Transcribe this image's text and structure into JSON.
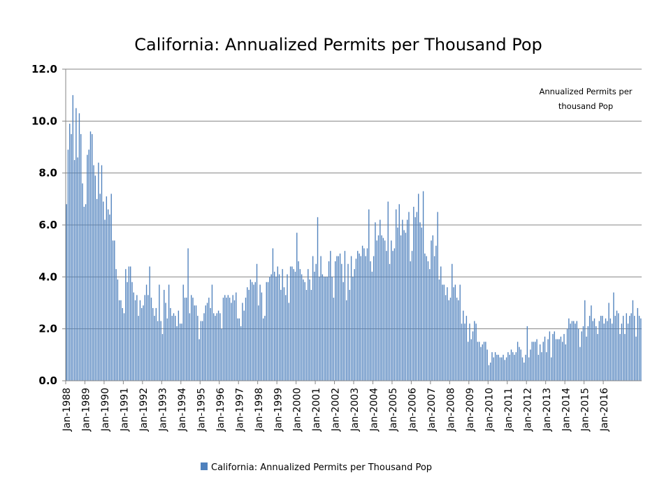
{
  "chart_data": {
    "type": "bar",
    "title": "California: Annualized Permits per Thousand Pop",
    "xlabel": "",
    "ylabel": "",
    "ylim": [
      0,
      12
    ],
    "yticks": [
      "0.0",
      "2.0",
      "4.0",
      "6.0",
      "8.0",
      "10.0",
      "12.0"
    ],
    "grid": true,
    "legend_position": "bottom",
    "annotation": [
      "Annualized Permits per",
      "thousand Pop"
    ],
    "bar_color": "#4f81bd",
    "start": "Jan-1988",
    "x_ticks": [
      "Jan-1988",
      "Jan-1989",
      "Jan-1990",
      "Jan-1991",
      "Jan-1992",
      "Jan-1993",
      "Jan-1994",
      "Jan-1995",
      "Jan-1996",
      "Jan-1997",
      "Jan-1998",
      "Jan-1999",
      "Jan-2000",
      "Jan-2001",
      "Jan-2002",
      "Jan-2003",
      "Jan-2004",
      "Jan-2005",
      "Jan-2006",
      "Jan-2007",
      "Jan-2008",
      "Jan-2009",
      "Jan-2010",
      "Jan-2011",
      "Jan-2012",
      "Jan-2013",
      "Jan-2014",
      "Jan-2015",
      "Jan-2016"
    ],
    "series": [
      {
        "name": "California: Annualized Permits per Thousand Pop",
        "values": [
          6.8,
          8.9,
          9.9,
          9.5,
          11.0,
          8.5,
          10.5,
          8.6,
          10.3,
          9.5,
          7.6,
          6.7,
          6.8,
          8.7,
          8.9,
          9.6,
          9.5,
          8.3,
          7.9,
          7.0,
          8.4,
          7.2,
          8.3,
          6.9,
          6.2,
          7.1,
          6.6,
          6.4,
          7.2,
          5.4,
          5.4,
          4.3,
          3.9,
          3.1,
          3.1,
          2.8,
          2.6,
          4.3,
          3.8,
          4.4,
          4.4,
          3.8,
          3.4,
          3.1,
          3.3,
          2.5,
          3.1,
          2.8,
          2.9,
          3.3,
          3.7,
          3.3,
          4.4,
          3.2,
          2.8,
          2.5,
          2.8,
          2.3,
          3.7,
          2.3,
          1.8,
          3.5,
          3.0,
          2.4,
          3.7,
          2.8,
          2.5,
          2.6,
          2.5,
          2.1,
          2.7,
          2.2,
          2.2,
          3.7,
          3.2,
          3.2,
          5.1,
          2.6,
          3.3,
          3.2,
          2.9,
          2.9,
          2.5,
          1.6,
          2.3,
          2.3,
          2.6,
          2.9,
          3.0,
          3.2,
          2.8,
          3.7,
          2.6,
          2.5,
          2.6,
          2.7,
          2.6,
          2.0,
          3.2,
          3.3,
          3.2,
          3.3,
          3.2,
          3.0,
          3.3,
          3.1,
          3.4,
          2.4,
          2.4,
          2.1,
          3.0,
          2.7,
          3.2,
          3.6,
          3.5,
          3.9,
          3.8,
          3.7,
          3.8,
          4.5,
          2.9,
          3.7,
          3.4,
          2.4,
          2.5,
          3.8,
          3.8,
          4.0,
          4.1,
          5.1,
          4.2,
          4.0,
          4.4,
          4.1,
          3.5,
          4.3,
          3.6,
          3.3,
          4.1,
          3.0,
          4.4,
          4.4,
          4.3,
          4.2,
          5.7,
          4.6,
          4.3,
          4.1,
          3.9,
          3.8,
          3.5,
          4.3,
          3.9,
          3.5,
          4.8,
          4.2,
          4.5,
          6.3,
          4.0,
          4.8,
          4.1,
          4.0,
          4.0,
          4.0,
          4.6,
          5.0,
          4.0,
          3.2,
          4.6,
          4.8,
          4.8,
          4.9,
          4.5,
          3.8,
          5.0,
          3.1,
          4.5,
          3.5,
          4.8,
          4.0,
          4.3,
          4.7,
          5.0,
          4.9,
          4.8,
          5.2,
          5.1,
          4.8,
          5.1,
          6.6,
          4.6,
          4.2,
          4.8,
          6.1,
          5.4,
          5.6,
          6.2,
          5.6,
          5.5,
          5.4,
          5.0,
          6.9,
          4.5,
          5.4,
          5.0,
          5.1,
          6.6,
          5.9,
          6.8,
          5.6,
          6.2,
          5.8,
          5.7,
          6.2,
          6.5,
          4.6,
          5.0,
          6.7,
          6.3,
          6.5,
          7.2,
          6.1,
          5.9,
          7.3,
          4.9,
          4.8,
          4.6,
          4.3,
          5.4,
          5.6,
          4.8,
          5.2,
          6.5,
          3.9,
          4.4,
          3.7,
          3.7,
          3.3,
          3.6,
          3.1,
          3.2,
          4.5,
          3.6,
          3.7,
          3.2,
          3.1,
          3.7,
          2.2,
          2.7,
          2.2,
          2.5,
          1.5,
          2.2,
          1.6,
          1.9,
          2.3,
          2.2,
          1.5,
          1.5,
          1.3,
          1.4,
          1.5,
          1.5,
          1.2,
          0.6,
          0.7,
          1.1,
          0.9,
          1.1,
          1.0,
          1.0,
          0.9,
          0.9,
          1.0,
          0.8,
          0.9,
          1.1,
          1.0,
          1.2,
          1.1,
          1.0,
          1.1,
          1.5,
          1.3,
          1.2,
          0.9,
          0.7,
          1.0,
          2.1,
          0.9,
          1.2,
          1.5,
          1.5,
          1.5,
          1.6,
          1.0,
          1.4,
          1.1,
          1.5,
          1.7,
          1.1,
          1.6,
          1.9,
          0.9,
          1.8,
          1.9,
          1.6,
          1.6,
          1.6,
          1.7,
          1.5,
          1.8,
          1.4,
          2.0,
          2.4,
          2.2,
          2.3,
          2.3,
          2.2,
          2.3,
          2.0,
          1.3,
          1.9,
          2.1,
          3.1,
          1.7,
          2.1,
          2.5,
          2.9,
          2.3,
          2.4,
          2.1,
          1.8,
          2.3,
          2.5,
          2.5,
          2.2,
          2.4,
          2.3,
          3.0,
          2.4,
          2.2,
          3.4,
          2.5,
          2.7,
          2.6,
          1.8,
          2.2,
          2.5,
          1.8,
          2.6,
          2.2,
          2.5,
          2.6,
          3.1,
          2.5,
          1.7,
          2.8,
          2.5,
          2.4
        ]
      }
    ]
  }
}
